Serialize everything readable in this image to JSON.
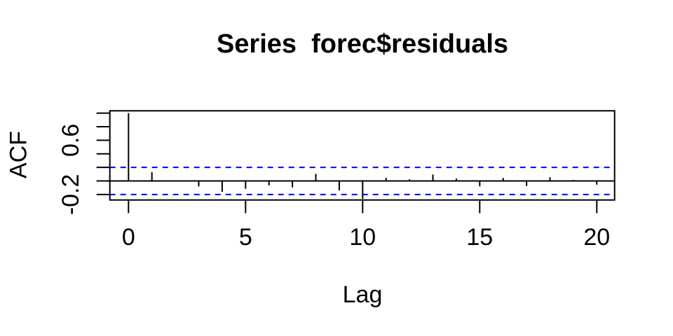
{
  "chart_data": {
    "type": "bar",
    "subtype": "acf-stem-plot",
    "title": "Series  forec$residuals",
    "xlabel": "Lag",
    "ylabel": "ACF",
    "x": [
      0,
      1,
      2,
      3,
      4,
      5,
      6,
      7,
      8,
      9,
      10,
      11,
      12,
      13,
      14,
      15,
      16,
      17,
      18,
      19,
      20
    ],
    "values": [
      1.0,
      0.13,
      -0.01,
      -0.08,
      -0.16,
      -0.115,
      -0.065,
      -0.095,
      0.105,
      -0.14,
      -0.265,
      0.046,
      0.025,
      0.095,
      0.035,
      -0.08,
      0.045,
      -0.075,
      0.055,
      0.015,
      -0.055
    ],
    "confidence_interval": {
      "upper": 0.2,
      "lower": -0.2,
      "line_style": "dashed",
      "color": "#0000FF"
    },
    "x_ticks": [
      0,
      5,
      10,
      15,
      20
    ],
    "x_tick_labels": [
      "0",
      "5",
      "10",
      "15",
      "20"
    ],
    "y_ticks": [
      -0.2,
      0,
      0.2,
      0.4,
      0.6,
      0.8,
      1.0
    ],
    "y_labeled_ticks": [
      {
        "value": 0.6,
        "label": "0.6"
      },
      {
        "value": -0.2,
        "label": "-0.2"
      }
    ],
    "xlim": [
      -0.8,
      20.8
    ],
    "ylim": [
      -0.281,
      1.04
    ],
    "grid": false,
    "legend": null,
    "zero_line": 0,
    "colors": {
      "spike": "#000000",
      "axis": "#000000",
      "ci": "#0000FF",
      "background": "#FFFFFF"
    }
  }
}
